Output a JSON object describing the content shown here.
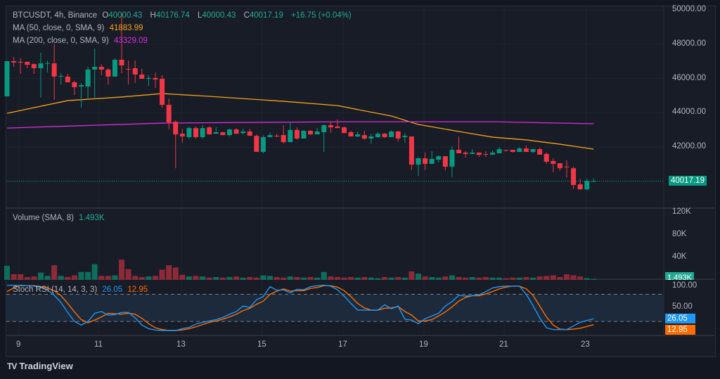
{
  "header": {
    "symbol": "BTCUSDT, 4h, Binance",
    "open_label": "O",
    "open": "40000.43",
    "high_label": "H",
    "high": "40176.74",
    "low_label": "L",
    "low": "40000.43",
    "close_label": "C",
    "close": "40017.19",
    "change": "+16.75 (+0.04%)"
  },
  "ma50": {
    "label": "MA (50, close, 0, SMA, 9)",
    "value": "41883.99",
    "color": "#f7a21b"
  },
  "ma200": {
    "label": "MA (200, close, 0, SMA, 9)",
    "value": "43329.09",
    "color": "#d92ed9"
  },
  "volume": {
    "label": "Volume (SMA, 8)",
    "value": "1.493K",
    "axis": [
      "120K",
      "80K",
      "40K"
    ],
    "last_tag": "1.493K"
  },
  "stoch": {
    "label": "Stoch RSI (14, 14, 3, 3)",
    "k_value": "26.05",
    "d_value": "12.95",
    "axis": [
      "100.00",
      "50.00"
    ],
    "k_color": "#2196f3",
    "d_color": "#ff6d00"
  },
  "price_axis": [
    "50000.00",
    "48000.00",
    "46000.00",
    "44000.00",
    "42000.00"
  ],
  "last_price_tag": "40017.19",
  "time_axis": [
    "9",
    "11",
    "13",
    "15",
    "17",
    "19",
    "21",
    "23"
  ],
  "footer": {
    "brand": "TradingView"
  },
  "colors": {
    "up": "#089981",
    "down": "#f23645",
    "background": "#181c27"
  },
  "chart_data": {
    "type": "candlestick",
    "ylim": [
      39000,
      50000
    ],
    "candles": [
      [
        44960,
        47010,
        44960,
        47010
      ],
      [
        47010,
        47250,
        46680,
        46930
      ],
      [
        46970,
        47170,
        46270,
        46950
      ],
      [
        46970,
        46970,
        46600,
        46800
      ],
      [
        46840,
        46880,
        46270,
        46600
      ],
      [
        46600,
        47500,
        44880,
        46880
      ],
      [
        46860,
        47050,
        46350,
        46900
      ],
      [
        46880,
        47990,
        44750,
        46110
      ],
      [
        46110,
        46310,
        45650,
        46150
      ],
      [
        46110,
        46270,
        45780,
        45780
      ],
      [
        45780,
        45860,
        45040,
        45490
      ],
      [
        45530,
        45740,
        44300,
        45610
      ],
      [
        45530,
        46680,
        44830,
        46520
      ],
      [
        46520,
        47750,
        44880,
        46680
      ],
      [
        46680,
        46840,
        46190,
        46520
      ],
      [
        46520,
        46600,
        45650,
        46110
      ],
      [
        46110,
        47170,
        46110,
        47090
      ],
      [
        47090,
        49800,
        46310,
        46760
      ],
      [
        46560,
        47050,
        45650,
        46520
      ],
      [
        46600,
        47050,
        45730,
        46230
      ],
      [
        46230,
        46560,
        45980,
        45980
      ],
      [
        45980,
        46190,
        45570,
        46030
      ],
      [
        46030,
        46350,
        45450,
        45940
      ],
      [
        45980,
        46190,
        44300,
        44460
      ],
      [
        44460,
        44830,
        43030,
        43440
      ],
      [
        43480,
        43560,
        40770,
        42740
      ],
      [
        42780,
        43070,
        42250,
        42620
      ],
      [
        42580,
        43200,
        42490,
        43110
      ],
      [
        43110,
        43200,
        42490,
        42580
      ],
      [
        42580,
        43280,
        42490,
        43110
      ],
      [
        43150,
        43230,
        42740,
        42740
      ],
      [
        42780,
        43150,
        42780,
        42870
      ],
      [
        42870,
        42870,
        42700,
        42700
      ],
      [
        42700,
        43070,
        42620,
        43030
      ],
      [
        43030,
        43110,
        42780,
        42780
      ],
      [
        42820,
        43070,
        42740,
        42910
      ],
      [
        42910,
        43070,
        42660,
        42660
      ],
      [
        42660,
        42740,
        41720,
        41720
      ],
      [
        41720,
        42700,
        41640,
        42580
      ],
      [
        42580,
        42860,
        42580,
        42700
      ],
      [
        42660,
        42780,
        42580,
        42620
      ],
      [
        42700,
        43280,
        42210,
        42290
      ],
      [
        42290,
        43440,
        42290,
        43000
      ],
      [
        43000,
        43150,
        42420,
        42500
      ],
      [
        42500,
        43000,
        42500,
        42950
      ],
      [
        42950,
        43000,
        42700,
        42740
      ],
      [
        42740,
        43110,
        42740,
        42910
      ],
      [
        42870,
        43320,
        41720,
        43280
      ],
      [
        43280,
        43440,
        42820,
        43150
      ],
      [
        43200,
        43610,
        43110,
        43110
      ],
      [
        43150,
        43200,
        42820,
        42820
      ],
      [
        42870,
        42950,
        42620,
        42620
      ],
      [
        42620,
        42910,
        42580,
        42740
      ],
      [
        42700,
        42950,
        42420,
        42500
      ],
      [
        42500,
        42780,
        42210,
        42620
      ],
      [
        42580,
        42870,
        42540,
        42780
      ],
      [
        42780,
        42820,
        42540,
        42580
      ],
      [
        42580,
        42990,
        42580,
        42910
      ],
      [
        42910,
        42950,
        42330,
        42500
      ],
      [
        42580,
        42830,
        42250,
        42660
      ],
      [
        42620,
        42620,
        40650,
        40980
      ],
      [
        40980,
        41430,
        40320,
        41350
      ],
      [
        41350,
        41690,
        40650,
        41020
      ],
      [
        41020,
        41760,
        41020,
        41310
      ],
      [
        41270,
        41520,
        41100,
        41470
      ],
      [
        41470,
        41470,
        40650,
        40860
      ],
      [
        40860,
        42050,
        40240,
        41840
      ],
      [
        41840,
        42620,
        41640,
        41640
      ],
      [
        41680,
        41760,
        41390,
        41600
      ],
      [
        41600,
        41880,
        41600,
        41680
      ],
      [
        41680,
        41680,
        41430,
        41550
      ],
      [
        41600,
        41760,
        41430,
        41560
      ],
      [
        41560,
        41800,
        41560,
        41680
      ],
      [
        41640,
        42010,
        41640,
        41880
      ],
      [
        41840,
        41840,
        41720,
        41800
      ],
      [
        41840,
        41840,
        41680,
        41720
      ],
      [
        41720,
        42010,
        41720,
        41920
      ],
      [
        41920,
        42090,
        41720,
        41720
      ],
      [
        41720,
        41880,
        41640,
        41880
      ],
      [
        41880,
        41960,
        41560,
        41560
      ],
      [
        41600,
        41680,
        41020,
        41150
      ],
      [
        41190,
        41350,
        40530,
        41020
      ],
      [
        41060,
        41060,
        40610,
        40770
      ],
      [
        40860,
        41230,
        40240,
        40820
      ],
      [
        40770,
        40860,
        39550,
        39790
      ],
      [
        39830,
        40160,
        39500,
        39540
      ],
      [
        39540,
        40160,
        39460,
        40040
      ],
      [
        40000,
        40177,
        40000,
        40017
      ]
    ],
    "candle_format": [
      "open",
      "high",
      "low",
      "close"
    ],
    "ma50": [
      [
        0,
        43970
      ],
      [
        9,
        44710
      ],
      [
        17,
        44920
      ],
      [
        23,
        45120
      ],
      [
        30,
        44960
      ],
      [
        41,
        44670
      ],
      [
        49,
        44420
      ],
      [
        57,
        43810
      ],
      [
        61,
        43320
      ],
      [
        67,
        42910
      ],
      [
        72,
        42580
      ],
      [
        77,
        42420
      ],
      [
        82,
        42170
      ],
      [
        87,
        41880
      ]
    ],
    "ma200": [
      [
        0,
        43110
      ],
      [
        23,
        43400
      ],
      [
        51,
        43480
      ],
      [
        72,
        43480
      ],
      [
        87,
        43360
      ]
    ],
    "volume_k": [
      25,
      10,
      10,
      5,
      6,
      13,
      7,
      26,
      7,
      5,
      8,
      14,
      14,
      28,
      7,
      7,
      8,
      36,
      19,
      7,
      5,
      6,
      7,
      18,
      26,
      22,
      9,
      6,
      7,
      6,
      4,
      5,
      4,
      5,
      6,
      4,
      5,
      4,
      8,
      7,
      5,
      4,
      6,
      5,
      4,
      5,
      4,
      14,
      6,
      5,
      4,
      5,
      4,
      5,
      4,
      3,
      5,
      4,
      5,
      4,
      15,
      11,
      6,
      5,
      4,
      6,
      8,
      5,
      4,
      5,
      4,
      5,
      4,
      4,
      3,
      4,
      4,
      5,
      4,
      6,
      7,
      8,
      5,
      10,
      8,
      6,
      3,
      1.493
    ],
    "volume_ylim": [
      0,
      120
    ],
    "stoch_k": [
      100,
      100,
      99,
      99,
      98,
      95,
      90,
      78,
      62,
      40,
      20,
      12,
      20,
      38,
      42,
      34,
      35,
      40,
      40,
      28,
      12,
      4,
      1,
      0,
      0,
      0,
      4,
      7,
      14,
      18,
      21,
      24,
      29,
      36,
      42,
      54,
      51,
      68,
      75,
      97,
      89,
      90,
      83,
      91,
      90,
      97,
      99,
      100,
      98,
      90,
      76,
      60,
      45,
      45,
      45,
      45,
      57,
      48,
      54,
      25,
      23,
      15,
      26,
      32,
      38,
      54,
      64,
      78,
      76,
      77,
      79,
      86,
      94,
      97,
      98,
      98,
      98,
      80,
      55,
      28,
      6,
      2,
      2,
      2,
      10,
      18,
      22,
      26.05
    ],
    "stoch_d": [
      86,
      94,
      100,
      99,
      99,
      97,
      94,
      88,
      77,
      60,
      41,
      24,
      17,
      23,
      30,
      38,
      37,
      36,
      38,
      36,
      27,
      15,
      6,
      2,
      0,
      0,
      1,
      4,
      8,
      13,
      18,
      21,
      25,
      30,
      36,
      44,
      49,
      58,
      65,
      80,
      87,
      92,
      87,
      88,
      88,
      93,
      95,
      99,
      99,
      96,
      88,
      75,
      60,
      50,
      45,
      45,
      49,
      50,
      53,
      42,
      34,
      21,
      21,
      24,
      32,
      41,
      52,
      65,
      73,
      77,
      77,
      81,
      86,
      92,
      96,
      98,
      98,
      92,
      78,
      54,
      30,
      12,
      3,
      2,
      3,
      5,
      9,
      12.95
    ],
    "stoch_bands": [
      20,
      80
    ]
  }
}
